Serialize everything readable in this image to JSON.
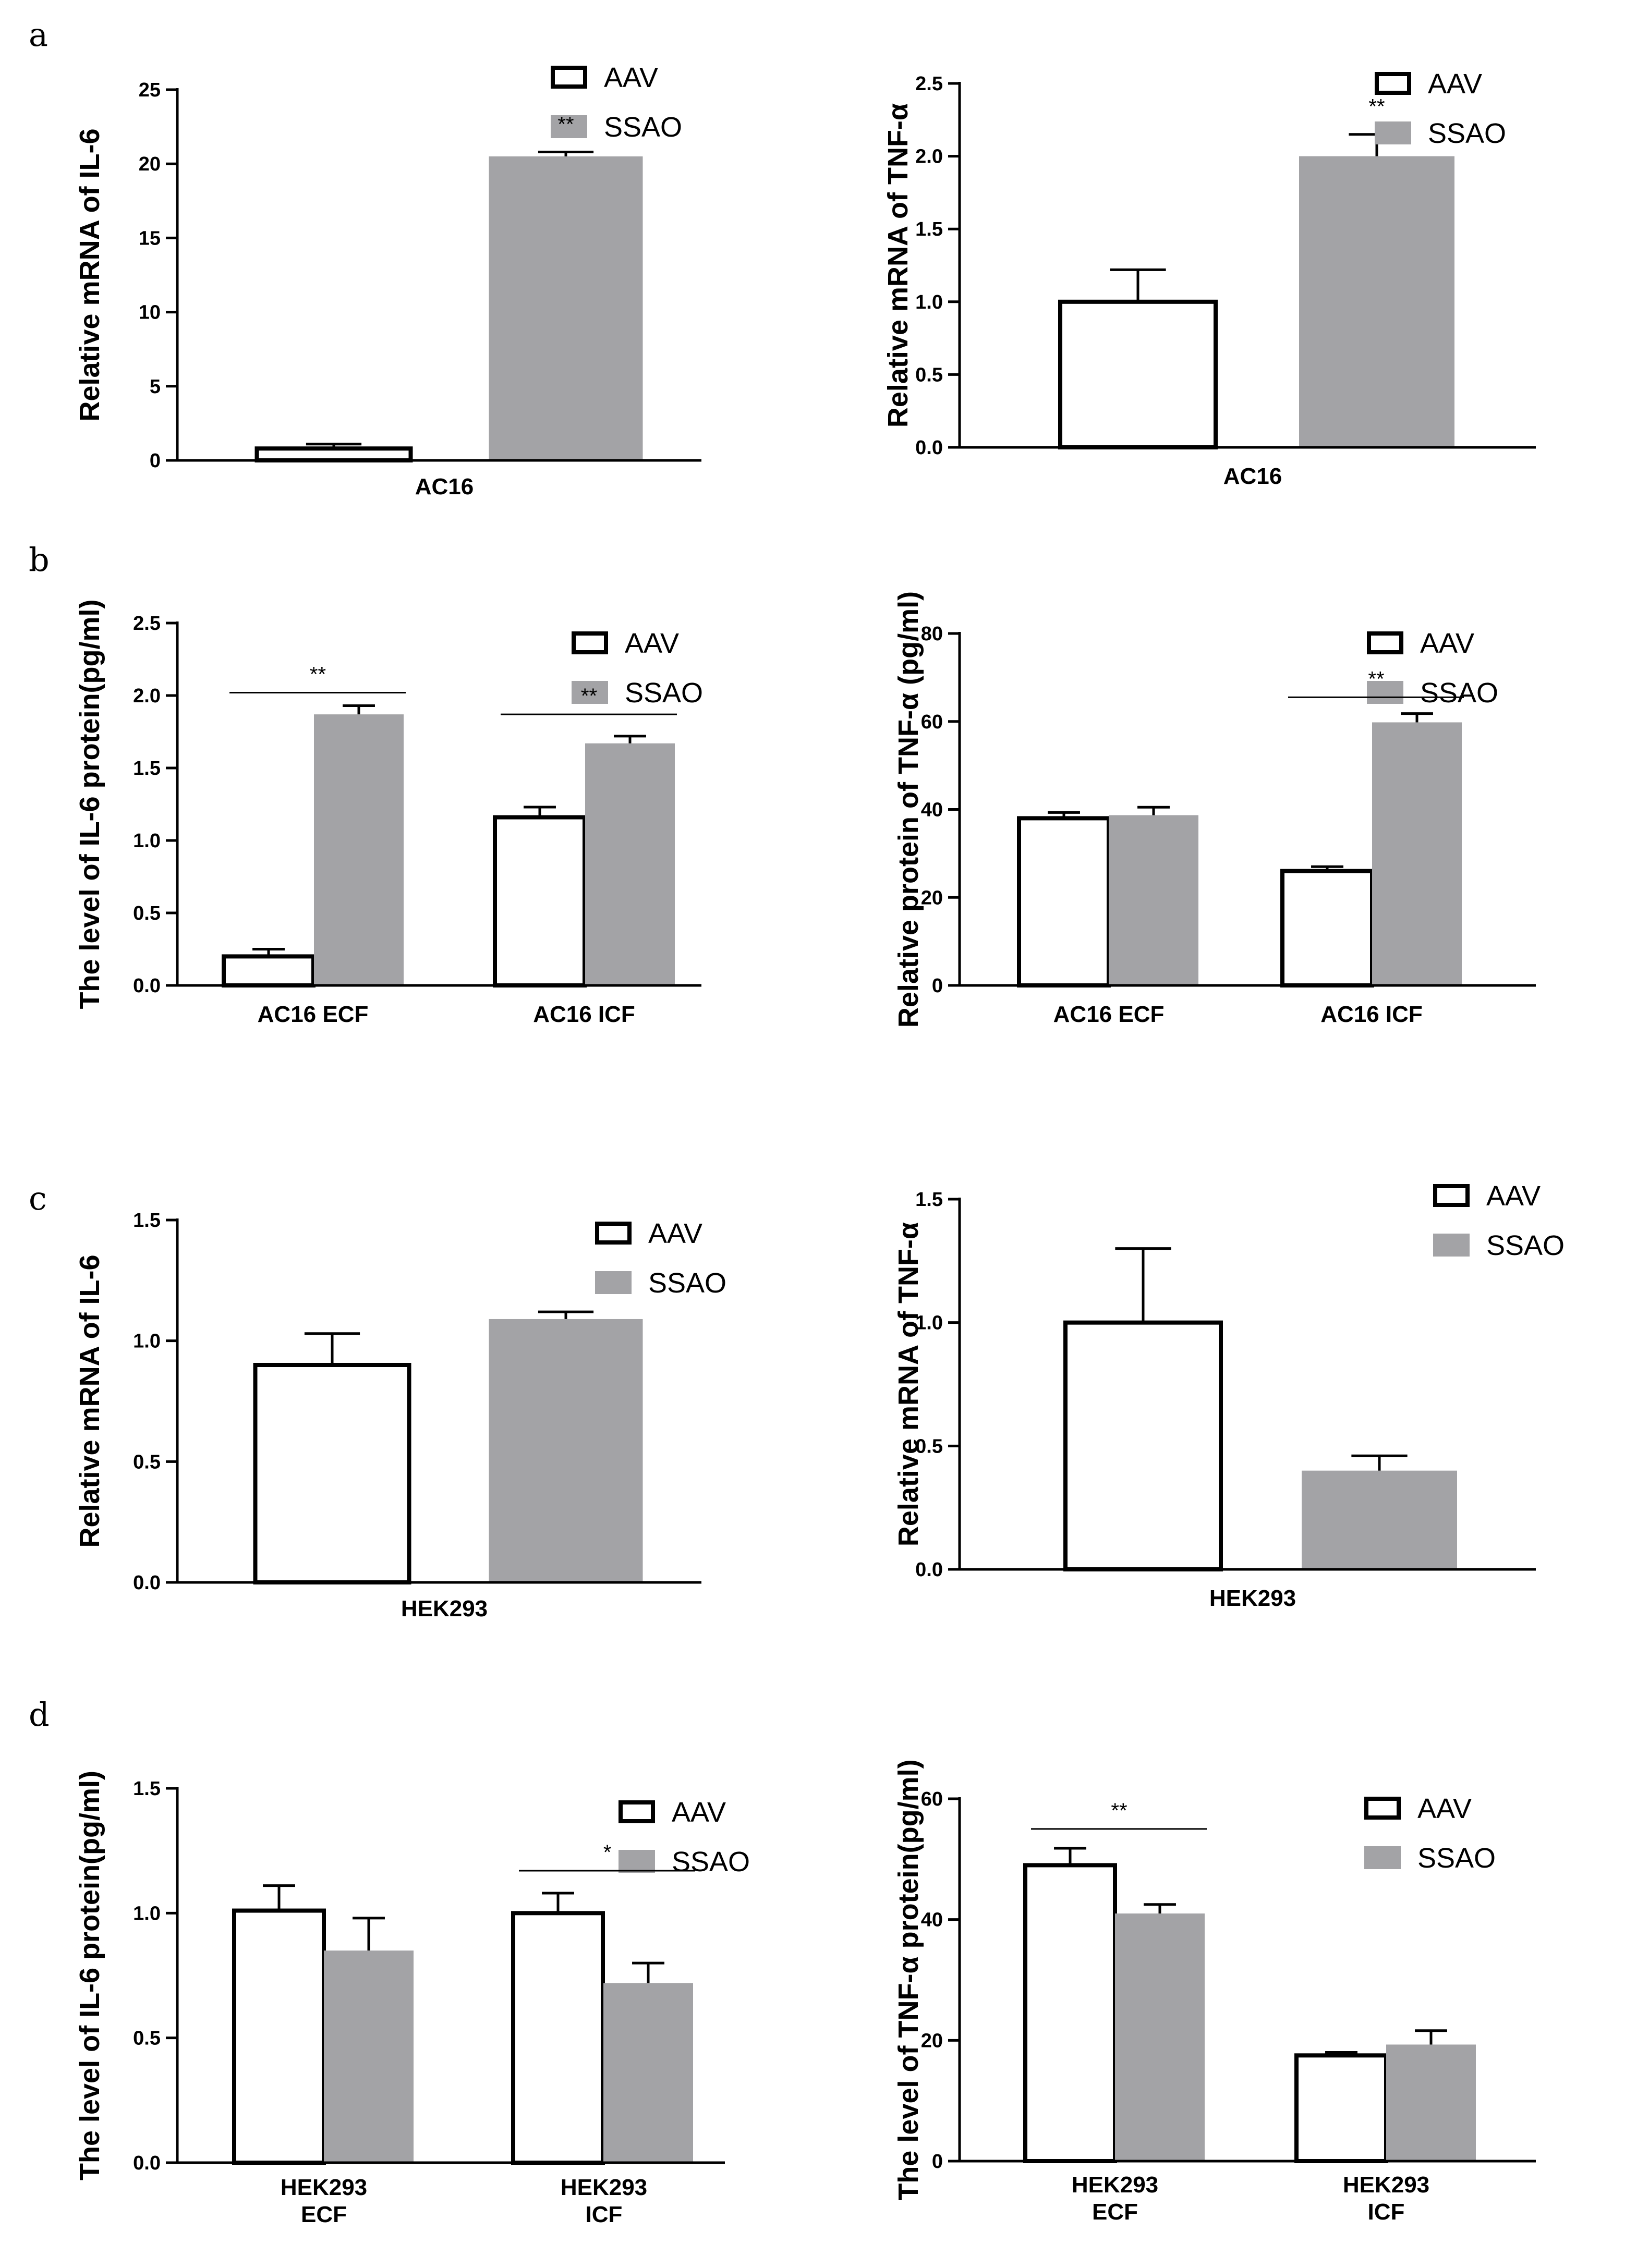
{
  "figure": {
    "panel_labels": [
      "a",
      "b",
      "c",
      "d"
    ],
    "colors": {
      "aav_fill": "#ffffff",
      "aav_stroke": "#000000",
      "ssao_fill": "#a3a3a6",
      "axis": "#000000"
    }
  },
  "chart_data": [
    {
      "id": "a_left",
      "panel": "a",
      "type": "bar",
      "title": "",
      "xlabel": "",
      "ylabel": "Relative mRNA of IL-6",
      "categories": [
        "AC16"
      ],
      "series": [
        {
          "name": "AAV",
          "values": [
            0.8
          ],
          "errors": [
            0.3
          ]
        },
        {
          "name": "SSAO",
          "values": [
            20.5
          ],
          "errors": [
            0.3
          ]
        }
      ],
      "ylim": [
        0,
        25
      ],
      "yticks": [
        {
          "v": 0,
          "label": "0"
        },
        {
          "v": 5,
          "label": "5"
        },
        {
          "v": 10,
          "label": "10"
        },
        {
          "v": 15,
          "label": "15"
        },
        {
          "v": 20,
          "label": "20"
        },
        {
          "v": 25,
          "label": "25"
        }
      ],
      "legend": [
        "AAV",
        "SSAO"
      ],
      "legend_position": "top-right",
      "annotations": [
        {
          "text": "**",
          "category": 0,
          "series": 1,
          "bracket": false
        }
      ]
    },
    {
      "id": "a_right",
      "panel": "a",
      "type": "bar",
      "title": "",
      "xlabel": "",
      "ylabel": "Relative mRNA of TNF-α",
      "categories": [
        "AC16"
      ],
      "series": [
        {
          "name": "AAV",
          "values": [
            1.0
          ],
          "errors": [
            0.22
          ]
        },
        {
          "name": "SSAO",
          "values": [
            2.0
          ],
          "errors": [
            0.15
          ]
        }
      ],
      "ylim": [
        0,
        2.5
      ],
      "yticks": [
        {
          "v": 0,
          "label": "0.0"
        },
        {
          "v": 0.5,
          "label": "0.5"
        },
        {
          "v": 1.0,
          "label": "1.0"
        },
        {
          "v": 1.5,
          "label": "1.5"
        },
        {
          "v": 2.0,
          "label": "2.0"
        },
        {
          "v": 2.5,
          "label": "2.5"
        }
      ],
      "legend": [
        "AAV",
        "SSAO"
      ],
      "legend_position": "top-right",
      "annotations": [
        {
          "text": "**",
          "category": 0,
          "series": 1,
          "bracket": false
        }
      ]
    },
    {
      "id": "b_left",
      "panel": "b",
      "type": "bar",
      "title": "",
      "xlabel": "",
      "ylabel": "The level of IL-6 protein(pg/ml)",
      "categories": [
        "AC16 ECF",
        "AC16 ICF"
      ],
      "series": [
        {
          "name": "AAV",
          "values": [
            0.2,
            1.16
          ],
          "errors": [
            0.05,
            0.07
          ]
        },
        {
          "name": "SSAO",
          "values": [
            1.87,
            1.67
          ],
          "errors": [
            0.06,
            0.05
          ]
        }
      ],
      "ylim": [
        0,
        2.5
      ],
      "yticks": [
        {
          "v": 0,
          "label": "0.0"
        },
        {
          "v": 0.5,
          "label": "0.5"
        },
        {
          "v": 1.0,
          "label": "1.0"
        },
        {
          "v": 1.5,
          "label": "1.5"
        },
        {
          "v": 2.0,
          "label": "2.0"
        },
        {
          "v": 2.5,
          "label": "2.5"
        }
      ],
      "legend": [
        "AAV",
        "SSAO"
      ],
      "legend_position": "top-right",
      "annotations": [
        {
          "text": "**",
          "category": 0,
          "bracket": true,
          "y": 2.02
        },
        {
          "text": "**",
          "category": 1,
          "bracket": true,
          "y": 1.87
        }
      ]
    },
    {
      "id": "b_right",
      "panel": "b",
      "type": "bar",
      "title": "",
      "xlabel": "",
      "ylabel": "Relative protein of TNF-α (pg/ml)",
      "categories": [
        "AC16 ECF",
        "AC16 ICF"
      ],
      "series": [
        {
          "name": "AAV",
          "values": [
            38,
            26
          ],
          "errors": [
            1.3,
            1.0
          ]
        },
        {
          "name": "SSAO",
          "values": [
            38.7,
            59.8
          ],
          "errors": [
            1.8,
            2.0
          ]
        }
      ],
      "ylim": [
        0,
        80
      ],
      "yticks": [
        {
          "v": 0,
          "label": "0"
        },
        {
          "v": 20,
          "label": "20"
        },
        {
          "v": 40,
          "label": "40"
        },
        {
          "v": 60,
          "label": "60"
        },
        {
          "v": 80,
          "label": "80"
        }
      ],
      "legend": [
        "AAV",
        "SSAO"
      ],
      "legend_position": "top-right",
      "annotations": [
        {
          "text": "**",
          "category": 1,
          "bracket": true,
          "y": 65.5
        }
      ]
    },
    {
      "id": "c_left",
      "panel": "c",
      "type": "bar",
      "title": "",
      "xlabel": "",
      "ylabel": "Relative mRNA of IL-6",
      "categories": [
        "HEK293"
      ],
      "series": [
        {
          "name": "AAV",
          "values": [
            0.9
          ],
          "errors": [
            0.13
          ]
        },
        {
          "name": "SSAO",
          "values": [
            1.09
          ],
          "errors": [
            0.03
          ]
        }
      ],
      "ylim": [
        0,
        1.5
      ],
      "yticks": [
        {
          "v": 0,
          "label": "0.0"
        },
        {
          "v": 0.5,
          "label": "0.5"
        },
        {
          "v": 1.0,
          "label": "1.0"
        },
        {
          "v": 1.5,
          "label": "1.5"
        }
      ],
      "legend": [
        "AAV",
        "SSAO"
      ],
      "legend_position": "top-right",
      "annotations": []
    },
    {
      "id": "c_right",
      "panel": "c",
      "type": "bar",
      "title": "",
      "xlabel": "",
      "ylabel": "Relative mRNA of TNF-α",
      "categories": [
        "HEK293"
      ],
      "series": [
        {
          "name": "AAV",
          "values": [
            1.0
          ],
          "errors": [
            0.3
          ]
        },
        {
          "name": "SSAO",
          "values": [
            0.4
          ],
          "errors": [
            0.06
          ]
        }
      ],
      "ylim": [
        0,
        1.5
      ],
      "yticks": [
        {
          "v": 0,
          "label": "0.0"
        },
        {
          "v": 0.5,
          "label": "0.5"
        },
        {
          "v": 1.0,
          "label": "1.0"
        },
        {
          "v": 1.5,
          "label": "1.5"
        }
      ],
      "legend": [
        "AAV",
        "SSAO"
      ],
      "legend_position": "top-right",
      "annotations": []
    },
    {
      "id": "d_left",
      "panel": "d",
      "type": "bar",
      "title": "",
      "xlabel": "",
      "ylabel": "The level of IL-6 protein(pg/ml)",
      "categories": [
        "HEK293\nECF",
        "HEK293\nICF"
      ],
      "series": [
        {
          "name": "AAV",
          "values": [
            1.01,
            1.0
          ],
          "errors": [
            0.1,
            0.08
          ]
        },
        {
          "name": "SSAO",
          "values": [
            0.85,
            0.72
          ],
          "errors": [
            0.13,
            0.08
          ]
        }
      ],
      "ylim": [
        0,
        1.5
      ],
      "yticks": [
        {
          "v": 0,
          "label": "0.0"
        },
        {
          "v": 0.5,
          "label": "0.5"
        },
        {
          "v": 1.0,
          "label": "1.0"
        },
        {
          "v": 1.5,
          "label": "1.5"
        }
      ],
      "legend": [
        "AAV",
        "SSAO"
      ],
      "legend_position": "top-right",
      "annotations": [
        {
          "text": "*",
          "category": 1,
          "bracket": true,
          "y": 1.17
        }
      ]
    },
    {
      "id": "d_right",
      "panel": "d",
      "type": "bar",
      "title": "",
      "xlabel": "",
      "ylabel": "The level of TNF-α protein(pg/ml)",
      "categories": [
        "HEK293\nECF",
        "HEK293\nICF"
      ],
      "series": [
        {
          "name": "AAV",
          "values": [
            49,
            17.5
          ],
          "errors": [
            2.8,
            0.5
          ]
        },
        {
          "name": "SSAO",
          "values": [
            41,
            19.3
          ],
          "errors": [
            1.5,
            2.3
          ]
        }
      ],
      "ylim": [
        0,
        60
      ],
      "yticks": [
        {
          "v": 0,
          "label": "0"
        },
        {
          "v": 20,
          "label": "20"
        },
        {
          "v": 40,
          "label": "40"
        },
        {
          "v": 60,
          "label": "60"
        }
      ],
      "legend": [
        "AAV",
        "SSAO"
      ],
      "legend_position": "top-right",
      "annotations": [
        {
          "text": "**",
          "category": 0,
          "bracket": true,
          "y": 55
        }
      ]
    }
  ]
}
